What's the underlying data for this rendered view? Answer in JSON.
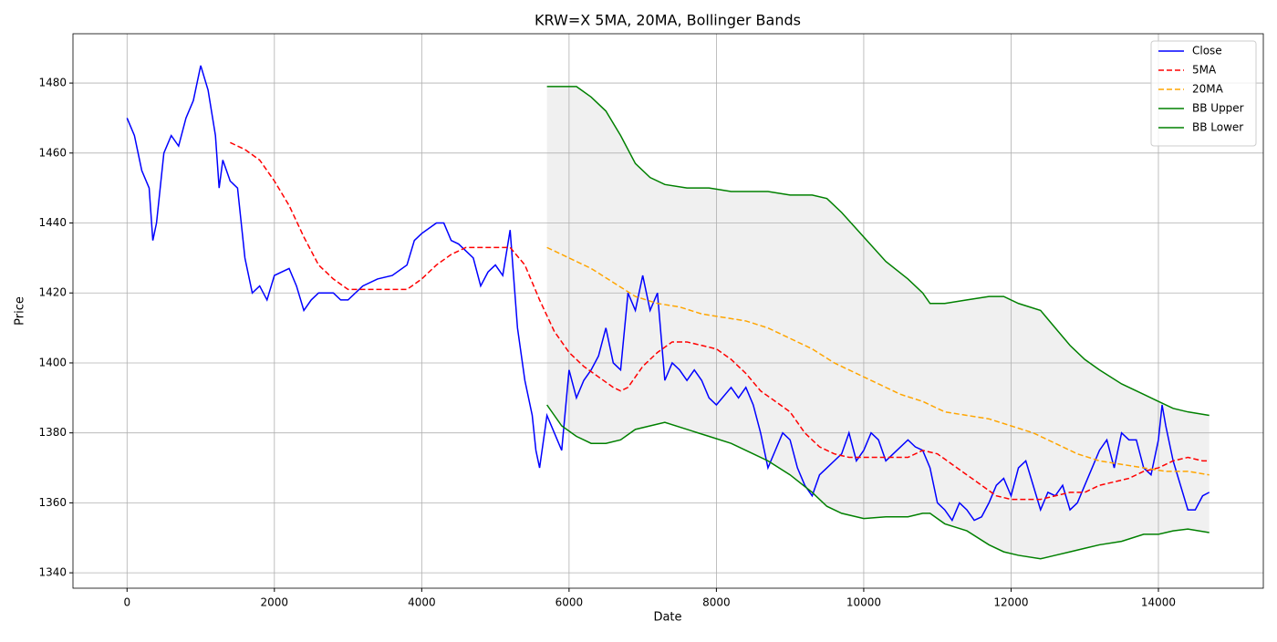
{
  "chart_data": {
    "type": "line",
    "title": "KRW=X 5MA, 20MA, Bollinger Bands",
    "xlabel": "Date",
    "ylabel": "Price",
    "xlim": [
      -734,
      15424
    ],
    "ylim": [
      1335.6,
      1494.1
    ],
    "xticks": [
      0,
      2000,
      4000,
      6000,
      8000,
      10000,
      12000,
      14000
    ],
    "yticks": [
      1340,
      1360,
      1380,
      1400,
      1420,
      1440,
      1460,
      1480
    ],
    "grid": true,
    "legend": "upper right",
    "band_fill": "#f0f0f0",
    "series": [
      {
        "name": "Close",
        "color": "#0000ff",
        "linestyle": "solid",
        "x": [
          0,
          100,
          200,
          300,
          350,
          400,
          500,
          600,
          700,
          800,
          900,
          1000,
          1100,
          1200,
          1250,
          1300,
          1400,
          1500,
          1600,
          1700,
          1800,
          1900,
          2000,
          2200,
          2300,
          2400,
          2500,
          2600,
          2800,
          2900,
          3000,
          3200,
          3400,
          3600,
          3800,
          3900,
          4000,
          4200,
          4300,
          4400,
          4500,
          4600,
          4700,
          4800,
          4900,
          5000,
          5100,
          5200,
          5300,
          5400,
          5500,
          5550,
          5600,
          5700,
          5800,
          5900,
          6000,
          6100,
          6200,
          6300,
          6400,
          6500,
          6600,
          6700,
          6800,
          6900,
          7000,
          7100,
          7200,
          7300,
          7400,
          7500,
          7600,
          7700,
          7800,
          7900,
          8000,
          8200,
          8300,
          8400,
          8500,
          8600,
          8700,
          8800,
          8900,
          9000,
          9100,
          9200,
          9300,
          9400,
          9500,
          9600,
          9700,
          9800,
          9900,
          10000,
          10100,
          10200,
          10300,
          10400,
          10500,
          10600,
          10700,
          10800,
          10900,
          11000,
          11100,
          11200,
          11300,
          11400,
          11500,
          11600,
          11700,
          11800,
          11900,
          12000,
          12100,
          12200,
          12300,
          12400,
          12500,
          12600,
          12700,
          12800,
          12900,
          13000,
          13100,
          13200,
          13300,
          13400,
          13500,
          13600,
          13700,
          13800,
          13900,
          14000,
          14050,
          14100,
          14200,
          14300,
          14400,
          14500,
          14600,
          14690
        ],
        "values": [
          1470,
          1465,
          1455,
          1450,
          1435,
          1440,
          1460,
          1465,
          1462,
          1470,
          1475,
          1485,
          1478,
          1465,
          1450,
          1458,
          1452,
          1450,
          1430,
          1420,
          1422,
          1418,
          1425,
          1427,
          1422,
          1415,
          1418,
          1420,
          1420,
          1418,
          1418,
          1422,
          1424,
          1425,
          1428,
          1435,
          1437,
          1440,
          1440,
          1435,
          1434,
          1432,
          1430,
          1422,
          1426,
          1428,
          1425,
          1438,
          1410,
          1395,
          1385,
          1375,
          1370,
          1385,
          1380,
          1375,
          1398,
          1390,
          1395,
          1398,
          1402,
          1410,
          1400,
          1398,
          1420,
          1415,
          1425,
          1415,
          1420,
          1395,
          1400,
          1398,
          1395,
          1398,
          1395,
          1390,
          1388,
          1393,
          1390,
          1393,
          1388,
          1380,
          1370,
          1375,
          1380,
          1378,
          1370,
          1365,
          1362,
          1368,
          1370,
          1372,
          1374,
          1380,
          1372,
          1375,
          1380,
          1378,
          1372,
          1374,
          1376,
          1378,
          1376,
          1375,
          1370,
          1360,
          1358,
          1355,
          1360,
          1358,
          1355,
          1356,
          1360,
          1365,
          1367,
          1362,
          1370,
          1372,
          1365,
          1358,
          1363,
          1362,
          1365,
          1358,
          1360,
          1365,
          1370,
          1375,
          1378,
          1370,
          1380,
          1378,
          1378,
          1370,
          1368,
          1378,
          1388,
          1382,
          1372,
          1365,
          1358,
          1358,
          1362,
          1363
        ]
      },
      {
        "name": "5MA",
        "color": "#ff0000",
        "linestyle": "dashed",
        "x": [
          1400,
          1600,
          1800,
          2000,
          2200,
          2400,
          2600,
          2800,
          3000,
          3200,
          3400,
          3600,
          3800,
          4000,
          4200,
          4400,
          4600,
          4800,
          5000,
          5200,
          5400,
          5600,
          5800,
          6000,
          6200,
          6400,
          6600,
          6700,
          6800,
          7000,
          7200,
          7400,
          7600,
          7800,
          8000,
          8200,
          8400,
          8600,
          8800,
          9000,
          9200,
          9400,
          9600,
          9800,
          10000,
          10200,
          10400,
          10600,
          10800,
          11000,
          11200,
          11400,
          11600,
          11800,
          12000,
          12200,
          12400,
          12600,
          12800,
          13000,
          13200,
          13400,
          13600,
          13800,
          14000,
          14200,
          14400,
          14600,
          14690
        ],
        "values": [
          1463,
          1461,
          1458,
          1452,
          1445,
          1436,
          1428,
          1424,
          1421,
          1421,
          1421,
          1421,
          1421,
          1424,
          1428,
          1431,
          1433,
          1433,
          1433,
          1433,
          1428,
          1418,
          1409,
          1403,
          1399,
          1396,
          1393,
          1392,
          1393,
          1399,
          1403,
          1406,
          1406,
          1405,
          1404,
          1401,
          1397,
          1392,
          1389,
          1386,
          1380,
          1376,
          1374,
          1373,
          1373,
          1373,
          1373,
          1373,
          1375,
          1374,
          1371,
          1368,
          1365,
          1362,
          1361,
          1361,
          1361,
          1362,
          1363,
          1363,
          1365,
          1366,
          1367,
          1369,
          1370,
          1372,
          1373,
          1372,
          1372
        ]
      },
      {
        "name": "20MA",
        "color": "#ffa500",
        "linestyle": "dashed",
        "x": [
          5700,
          6000,
          6300,
          6600,
          6900,
          7200,
          7500,
          7800,
          8100,
          8400,
          8700,
          9000,
          9300,
          9600,
          9900,
          10200,
          10500,
          10800,
          11100,
          11400,
          11700,
          12000,
          12300,
          12600,
          12900,
          13200,
          13500,
          13800,
          14100,
          14400,
          14690
        ],
        "values": [
          1433,
          1430,
          1427,
          1423,
          1419,
          1417,
          1416,
          1414,
          1413,
          1412,
          1410,
          1407,
          1404,
          1400,
          1397,
          1394,
          1391,
          1389,
          1386,
          1385,
          1384,
          1382,
          1380,
          1377,
          1374,
          1372,
          1371,
          1370,
          1369,
          1369,
          1368
        ]
      },
      {
        "name": "BB Upper",
        "color": "#008000",
        "linestyle": "solid",
        "x": [
          5700,
          5900,
          6100,
          6300,
          6500,
          6700,
          6900,
          7100,
          7300,
          7600,
          7900,
          8200,
          8500,
          8700,
          9000,
          9300,
          9500,
          9700,
          10000,
          10300,
          10600,
          10800,
          10900,
          11100,
          11400,
          11700,
          11900,
          12100,
          12400,
          12600,
          12800,
          13000,
          13200,
          13500,
          13800,
          14000,
          14200,
          14400,
          14690
        ],
        "values": [
          1479,
          1479,
          1479,
          1476,
          1472,
          1465,
          1457,
          1453,
          1451,
          1450,
          1450,
          1449,
          1449,
          1449,
          1448,
          1448,
          1447,
          1443,
          1436,
          1429,
          1424,
          1420,
          1417,
          1417,
          1418,
          1419,
          1419,
          1417,
          1415,
          1410,
          1405,
          1401,
          1398,
          1394,
          1391,
          1389,
          1387,
          1386,
          1385
        ]
      },
      {
        "name": "BB Lower",
        "color": "#008000",
        "linestyle": "solid",
        "x": [
          5700,
          5900,
          6100,
          6300,
          6500,
          6700,
          6900,
          7100,
          7300,
          7600,
          7900,
          8200,
          8500,
          8700,
          9000,
          9300,
          9500,
          9700,
          10000,
          10300,
          10600,
          10800,
          10900,
          11100,
          11400,
          11700,
          11900,
          12100,
          12400,
          12600,
          12800,
          13000,
          13200,
          13500,
          13800,
          14000,
          14200,
          14400,
          14690
        ],
        "values": [
          1388,
          1382,
          1379,
          1377,
          1377,
          1378,
          1381,
          1382,
          1383,
          1381,
          1379,
          1377,
          1374,
          1372,
          1368,
          1363,
          1359,
          1357,
          1355.5,
          1356,
          1356,
          1357,
          1357,
          1354,
          1352,
          1348,
          1346,
          1345,
          1344,
          1345,
          1346,
          1347,
          1348,
          1349,
          1351,
          1351,
          1352,
          1352.5,
          1351.5
        ]
      }
    ]
  }
}
